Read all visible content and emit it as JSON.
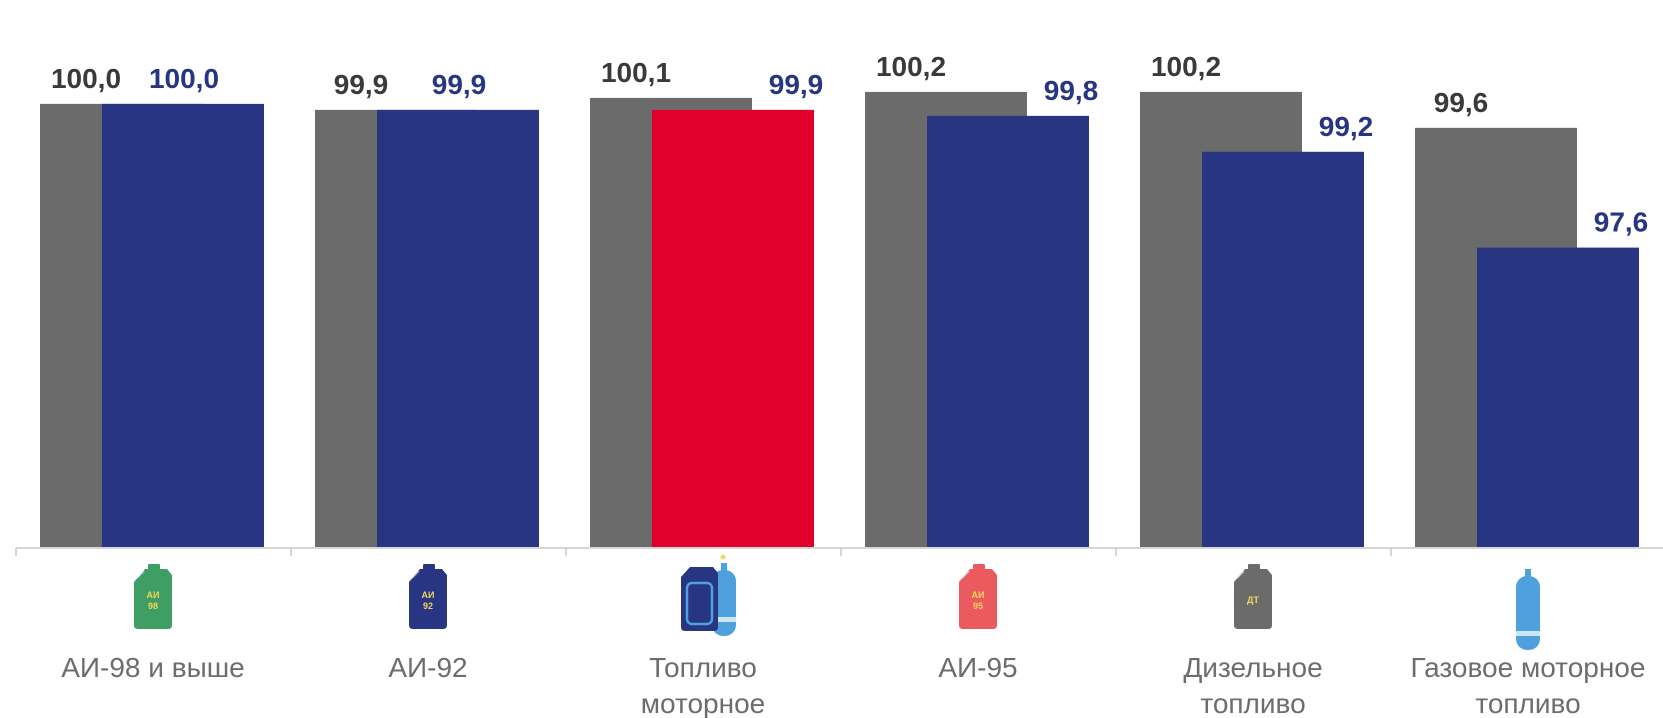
{
  "chart_data": {
    "type": "bar",
    "categories": [
      {
        "lines": [
          "АИ-98 и выше"
        ],
        "icon": "green-jerrycan-icon",
        "icon_text": [
          "АИ",
          "98"
        ]
      },
      {
        "lines": [
          "АИ-92"
        ],
        "icon": "navy-jerrycan-icon",
        "icon_text": [
          "АИ",
          "92"
        ]
      },
      {
        "lines": [
          "Топливо",
          "моторное"
        ],
        "icon": "jerrycan-and-gas-cylinder-icon",
        "icon_text": []
      },
      {
        "lines": [
          "АИ-95"
        ],
        "icon": "red-jerrycan-icon",
        "icon_text": [
          "АИ",
          "95"
        ]
      },
      {
        "lines": [
          "Дизельное",
          "топливо"
        ],
        "icon": "gray-jerrycan-icon",
        "icon_text": [
          "ДТ"
        ]
      },
      {
        "lines": [
          "Газовое моторное",
          "топливо"
        ],
        "icon": "gas-cylinder-icon",
        "icon_text": []
      }
    ],
    "series": [
      {
        "values": [
          100.0,
          99.9,
          100.1,
          100.2,
          100.2,
          99.6
        ],
        "labels": [
          "100,0",
          "99,9",
          "100,1",
          "100,2",
          "100,2",
          "99,6"
        ],
        "color": "#6b6b6b",
        "label_color": "#3a3a3a"
      },
      {
        "values": [
          100.0,
          99.9,
          99.9,
          99.8,
          99.2,
          97.6
        ],
        "labels": [
          "100,0",
          "99,9",
          "99,9",
          "99,8",
          "99,2",
          "97,6"
        ],
        "color": "#283583",
        "label_color": "#283583",
        "highlight_index": 2,
        "highlight_color": "#e1002a"
      }
    ],
    "ylim": [
      92.6,
      100.9
    ],
    "grid": false,
    "legend": "none"
  }
}
